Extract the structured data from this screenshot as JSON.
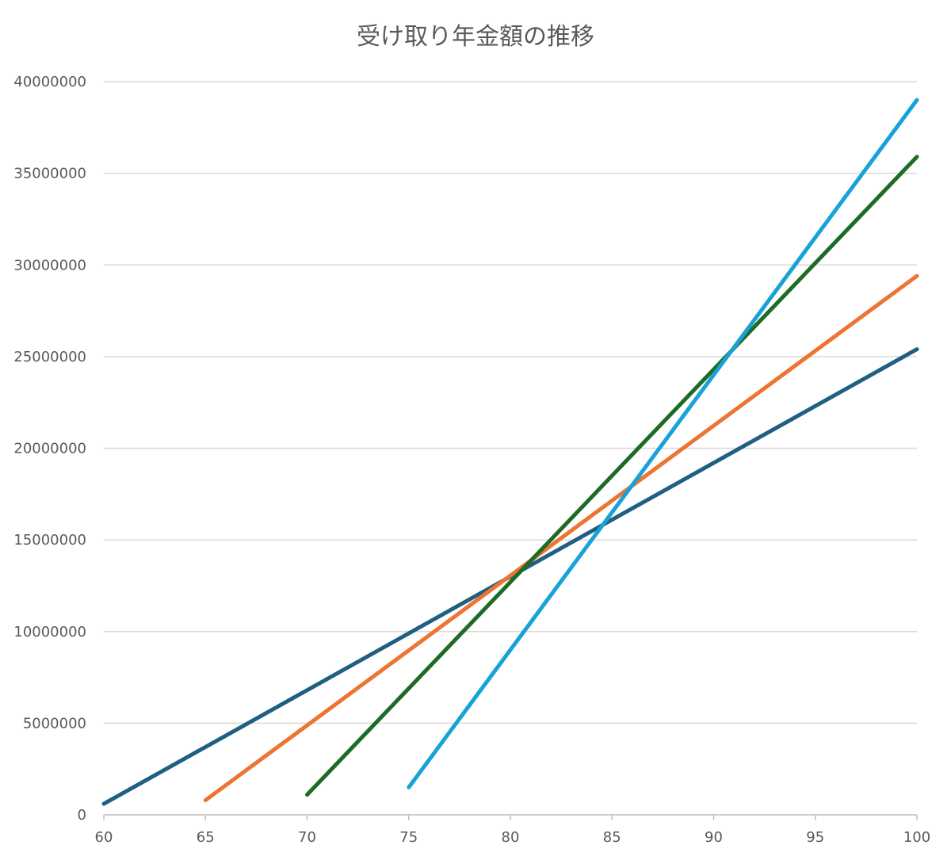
{
  "chart_data": {
    "type": "line",
    "title": "受け取り年金額の推移",
    "xlabel": "",
    "ylabel": "",
    "xlim": [
      60,
      100
    ],
    "ylim": [
      0,
      40000000
    ],
    "x_ticks": [
      60,
      65,
      70,
      75,
      80,
      85,
      90,
      95,
      100
    ],
    "y_ticks": [
      0,
      5000000,
      10000000,
      15000000,
      20000000,
      25000000,
      30000000,
      35000000,
      40000000
    ],
    "grid": true,
    "legend": "none",
    "series": [
      {
        "color": "#1f5f82",
        "x": [
          60,
          100
        ],
        "y": [
          600000,
          25400000
        ]
      },
      {
        "color": "#ed7433",
        "x": [
          65,
          100
        ],
        "y": [
          800000,
          29400000
        ]
      },
      {
        "color": "#1e6b24",
        "x": [
          70,
          100
        ],
        "y": [
          1100000,
          35900000
        ]
      },
      {
        "color": "#17a2d8",
        "x": [
          75,
          100
        ],
        "y": [
          1500000,
          39000000
        ]
      }
    ]
  }
}
